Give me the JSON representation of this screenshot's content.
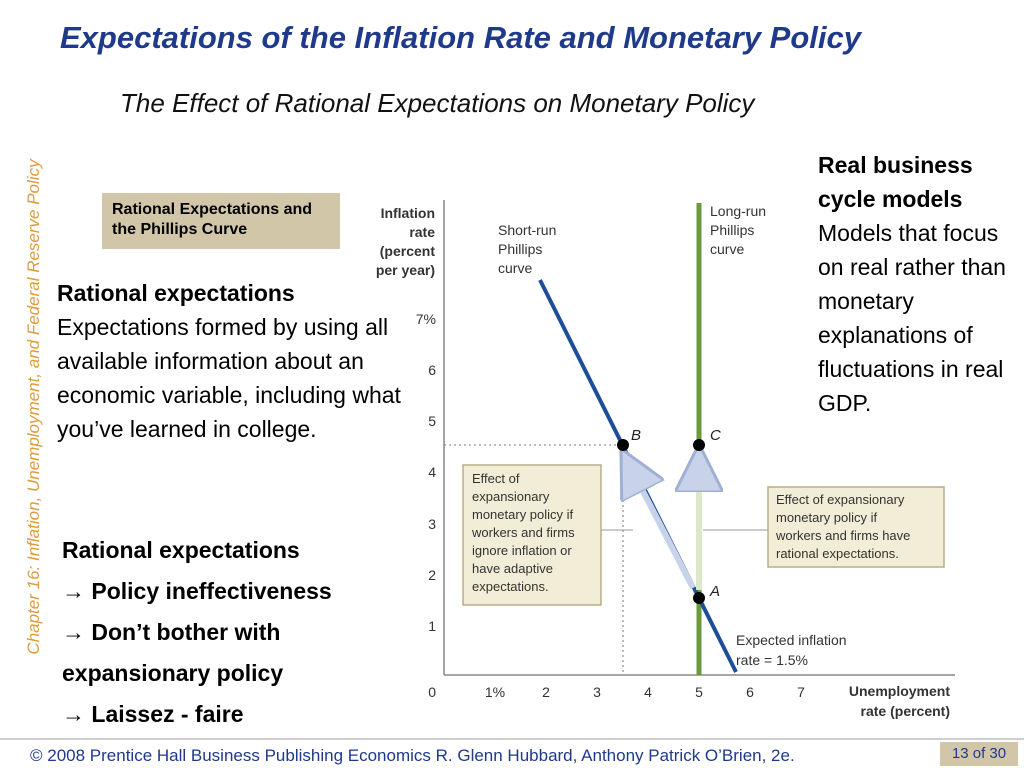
{
  "slide": {
    "title": "Expectations of the Inflation Rate and Monetary Policy",
    "subtitle": "The Effect of Rational Expectations on Monetary Policy",
    "sidebar": "Chapter 16:  Inflation, Unemployment, and Federal Reserve Policy",
    "figure_label": "Rational Expectations and the Phillips Curve"
  },
  "left_definition": {
    "term": "Rational expectations",
    "text": "Expectations formed by using all available information about an economic variable, including what you’ve learned in college."
  },
  "right_definition": {
    "term": "Real business cycle models",
    "text": "Models that focus on real rather than monetary explanations of fluctuations in real GDP."
  },
  "points": [
    "Rational expectations",
    "→ Policy ineffectiveness",
    "→ Don’t bother with",
    "expansionary policy",
    "→ Laissez - faire"
  ],
  "diagram": {
    "y_axis_label": [
      "Inflation",
      "rate",
      "(percent",
      "per year)"
    ],
    "x_axis_label": [
      "Unemployment",
      "rate (percent)"
    ],
    "y_ticks": [
      "0",
      "1",
      "2",
      "3",
      "4",
      "5",
      "6",
      "7%"
    ],
    "x_ticks": [
      "1%",
      "2",
      "3",
      "4",
      "5",
      "6",
      "7"
    ],
    "srpc_label": [
      "Short-run",
      "Phillips",
      "curve"
    ],
    "lrpc_label": [
      "Long-run",
      "Phillips",
      "curve"
    ],
    "point_a": "A",
    "point_b": "B",
    "point_c": "C",
    "adaptive_note": [
      "Effect of",
      "expansionary",
      "monetary policy if",
      "workers and firms",
      "ignore inflation or",
      "have adaptive",
      "expectations."
    ],
    "rational_note": [
      "Effect of expansionary",
      "monetary policy if",
      "workers and firms have",
      "rational expectations."
    ],
    "expected_note": [
      "Expected inflation",
      "rate = 1.5%"
    ],
    "colors": {
      "srpc": "#1f4e9c",
      "lrpc": "#6a9a3a",
      "note_bg": "#f2edd6",
      "note_border": "#b9ad86"
    }
  },
  "footer": {
    "text": "© 2008 Prentice Hall Business Publishing   Economics  R. Glenn Hubbard, Anthony Patrick O’Brien, 2e.",
    "page": "13 of 30"
  }
}
